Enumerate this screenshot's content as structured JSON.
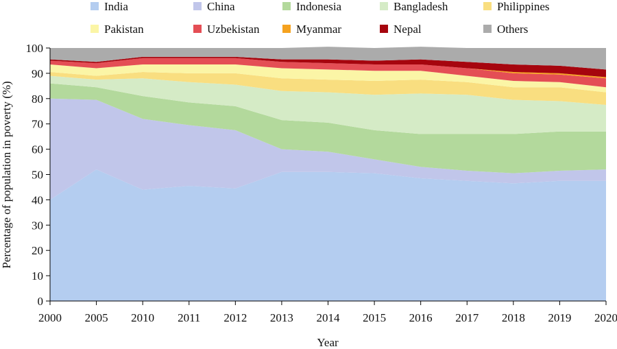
{
  "chart_data": {
    "type": "area",
    "stacked": true,
    "xlabel": "Year",
    "ylabel": "Percentage of population in poverty (%)",
    "ylim": [
      0,
      100
    ],
    "yticks": [
      0,
      10,
      20,
      30,
      40,
      50,
      60,
      70,
      80,
      90,
      100
    ],
    "categories": [
      "2000",
      "2005",
      "2010",
      "2011",
      "2012",
      "2013",
      "2014",
      "2015",
      "2016",
      "2017",
      "2018",
      "2019",
      "2020"
    ],
    "grid": false,
    "legend_position": "top",
    "series": [
      {
        "name": "India",
        "color": "#b4cdf0",
        "values": [
          40,
          52,
          44,
          45.5,
          44.5,
          51,
          51,
          50.5,
          48.5,
          47.5,
          46.5,
          47.5,
          47.5
        ]
      },
      {
        "name": "China",
        "color": "#c1c6ea",
        "values": [
          40,
          27.5,
          28,
          24,
          23,
          9,
          8,
          5.5,
          4.5,
          4,
          4,
          4,
          4.5
        ]
      },
      {
        "name": "Indonesia",
        "color": "#b3d99c",
        "values": [
          6,
          5,
          9,
          9,
          9.5,
          11.5,
          11.5,
          11.5,
          13,
          14.5,
          15.5,
          15.5,
          15
        ]
      },
      {
        "name": "Bangladesh",
        "color": "#d5ebc6",
        "values": [
          3,
          3,
          7,
          8,
          8.5,
          11.5,
          12,
          14,
          16,
          15.5,
          13.5,
          12,
          10.5
        ]
      },
      {
        "name": "Philippines",
        "color": "#f9de80",
        "values": [
          1.5,
          1.5,
          2.5,
          3.5,
          4.5,
          5,
          5,
          5.5,
          5.5,
          5,
          5,
          5.5,
          5
        ]
      },
      {
        "name": "Pakistan",
        "color": "#fbf5a6",
        "values": [
          3,
          3,
          3,
          3.5,
          3.5,
          4,
          4,
          4,
          3.5,
          2.5,
          2.5,
          2,
          2
        ]
      },
      {
        "name": "Uzbekistan",
        "color": "#e44e55",
        "values": [
          1.5,
          2,
          2.5,
          2.5,
          2.5,
          2.5,
          2.5,
          2.5,
          2.5,
          3,
          3,
          3,
          3.5
        ]
      },
      {
        "name": "Myanmar",
        "color": "#f5a21f",
        "values": [
          0,
          0,
          0,
          0,
          0,
          0,
          0,
          0,
          0,
          0,
          0.5,
          0.5,
          0.5
        ]
      },
      {
        "name": "Nepal",
        "color": "#a6050e",
        "values": [
          0.5,
          0.5,
          0.5,
          0.5,
          0.5,
          1,
          1.5,
          1.5,
          2,
          2.5,
          3,
          3,
          3
        ]
      },
      {
        "name": "Others",
        "color": "#ababab",
        "values": [
          4.5,
          5.5,
          3.5,
          3.5,
          3.5,
          4.5,
          5,
          5,
          5,
          5.5,
          6.5,
          7,
          8.5
        ]
      }
    ]
  }
}
